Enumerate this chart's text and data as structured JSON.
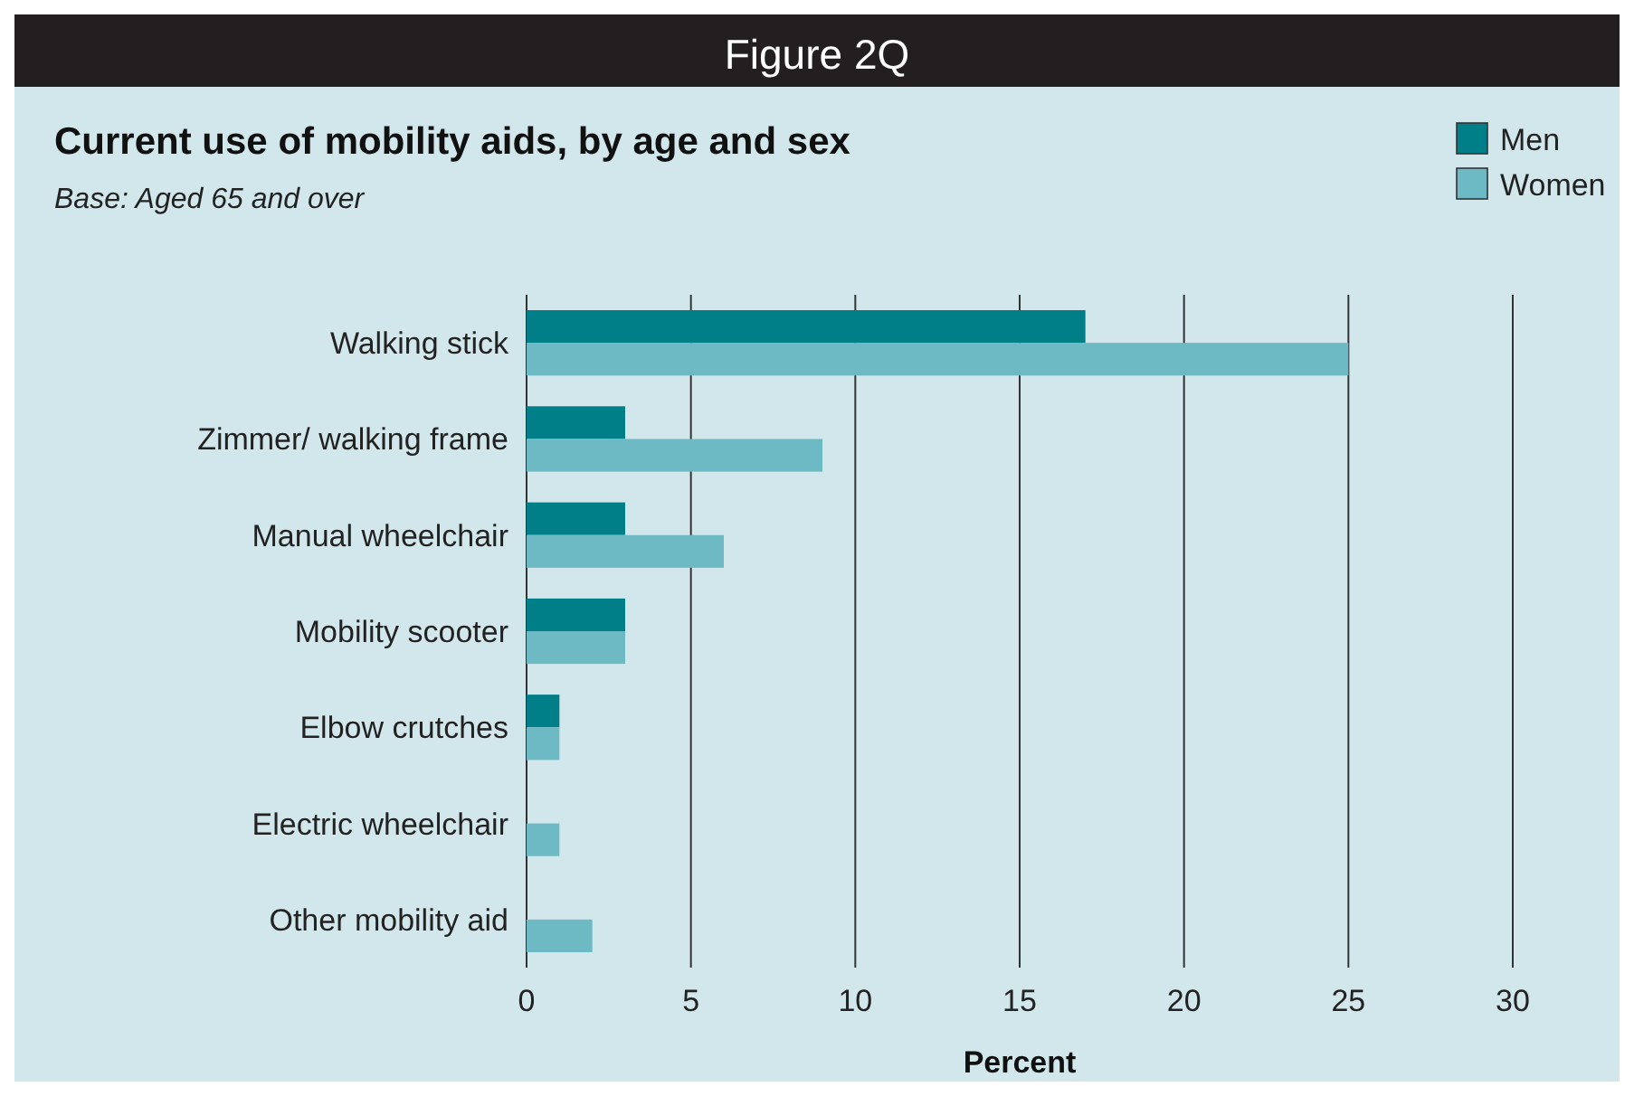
{
  "chart_data": {
    "type": "bar",
    "orientation": "horizontal",
    "title": "Current use of mobility aids, by age and sex",
    "subtitle": "Base: Aged 65 and over",
    "xlabel": "Percent",
    "annotations": [
      "Figure 2Q"
    ],
    "categories": [
      "Walking stick",
      "Zimmer/ walking frame",
      "Manual wheelchair",
      "Mobility scooter",
      "Elbow crutches",
      "Electric wheelchair",
      "Other mobility aid"
    ],
    "series": [
      {
        "name": "Men",
        "color": "#007f89",
        "values": [
          17,
          3,
          3,
          3,
          1,
          0,
          0
        ]
      },
      {
        "name": "Women",
        "color": "#6dbac4",
        "values": [
          25,
          9,
          6,
          3,
          1,
          1,
          2
        ]
      }
    ],
    "xlim": [
      0,
      30
    ],
    "xticks": [
      0,
      5,
      10,
      15,
      20,
      25,
      30
    ],
    "grid": "x",
    "legend": "top right"
  }
}
